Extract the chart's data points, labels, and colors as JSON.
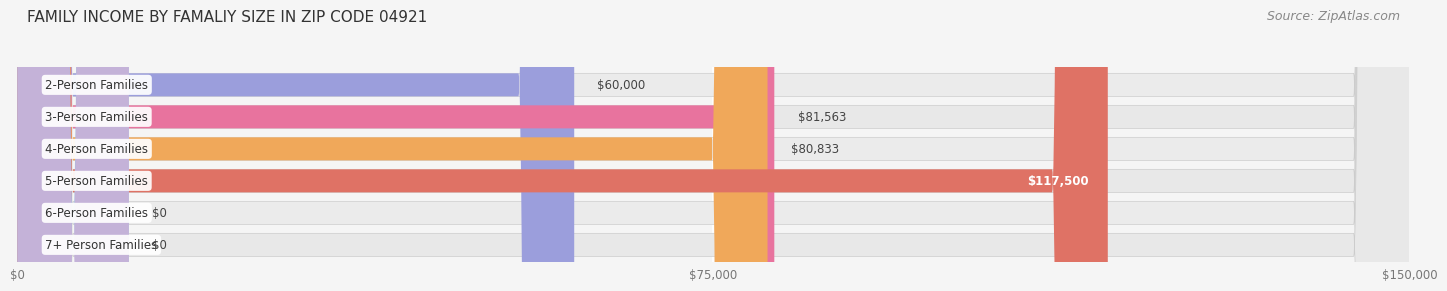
{
  "title": "FAMILY INCOME BY FAMALIY SIZE IN ZIP CODE 04921",
  "source": "Source: ZipAtlas.com",
  "categories": [
    "2-Person Families",
    "3-Person Families",
    "4-Person Families",
    "5-Person Families",
    "6-Person Families",
    "7+ Person Families"
  ],
  "values": [
    60000,
    81563,
    80833,
    117500,
    0,
    0
  ],
  "bar_colors": [
    "#9b9edc",
    "#e8739e",
    "#f0a85a",
    "#df7265",
    "#aabde0",
    "#c4b2d8"
  ],
  "value_labels": [
    "$60,000",
    "$81,563",
    "$80,833",
    "$117,500",
    "$0",
    "$0"
  ],
  "value_inside": [
    false,
    false,
    false,
    true,
    false,
    false
  ],
  "xlim": [
    0,
    150000
  ],
  "xticks": [
    0,
    75000,
    150000
  ],
  "xticklabels": [
    "$0",
    "$75,000",
    "$150,000"
  ],
  "bg_colors": [
    "#ebebeb",
    "#e8e8e8",
    "#ebebeb",
    "#e8e8e8",
    "#ebebeb",
    "#e8e8e8"
  ],
  "title_fontsize": 11,
  "source_fontsize": 9,
  "label_fontsize": 8.5,
  "value_fontsize": 8.5,
  "tick_fontsize": 8.5,
  "bar_height": 0.72,
  "zero_stub": 12000
}
